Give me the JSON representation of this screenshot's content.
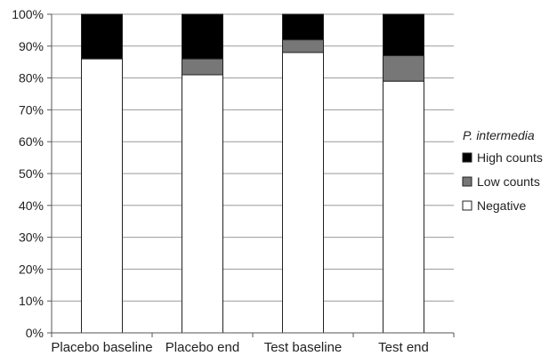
{
  "chart_data": {
    "type": "bar",
    "stacked": true,
    "percent_scale": true,
    "categories": [
      "Placebo baseline",
      "Placebo end",
      "Test baseline",
      "Test end"
    ],
    "series": [
      {
        "name": "Negative",
        "values": [
          86,
          81,
          88,
          79
        ],
        "color": "#ffffff"
      },
      {
        "name": "Low counts",
        "values": [
          0,
          5,
          4,
          8
        ],
        "color": "#777777"
      },
      {
        "name": "High counts",
        "values": [
          14,
          14,
          8,
          13
        ],
        "color": "#000000"
      }
    ],
    "ylim": [
      0,
      100
    ],
    "yticks": [
      "0%",
      "10%",
      "20%",
      "30%",
      "40%",
      "50%",
      "60%",
      "70%",
      "80%",
      "90%",
      "100%"
    ],
    "grid": true,
    "legend_title": "P. intermedia",
    "legend_position": "right",
    "legend_order": [
      "High counts",
      "Low counts",
      "Negative"
    ]
  }
}
